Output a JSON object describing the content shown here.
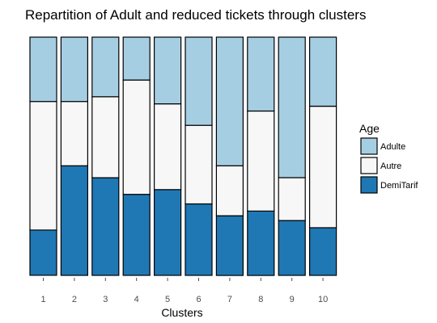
{
  "chart_data": {
    "type": "bar",
    "stacked": true,
    "normalized": true,
    "title": "Repartition of Adult and reduced tickets through clusters",
    "xlabel": "Clusters",
    "ylabel": "",
    "ylim": [
      0,
      1
    ],
    "grid": false,
    "categories": [
      "1",
      "2",
      "3",
      "4",
      "5",
      "6",
      "7",
      "8",
      "9",
      "10"
    ],
    "series": [
      {
        "name": "DemiTarif",
        "color": "#1f78b4",
        "values": [
          0.19,
          0.46,
          0.41,
          0.34,
          0.36,
          0.3,
          0.25,
          0.27,
          0.23,
          0.2
        ]
      },
      {
        "name": "Autre",
        "color": "#f7f7f7",
        "values": [
          0.54,
          0.27,
          0.34,
          0.48,
          0.36,
          0.33,
          0.21,
          0.42,
          0.18,
          0.51
        ]
      },
      {
        "name": "Adulte",
        "color": "#a6cee3",
        "values": [
          0.27,
          0.27,
          0.25,
          0.18,
          0.28,
          0.37,
          0.54,
          0.31,
          0.59,
          0.29
        ]
      }
    ],
    "legend": {
      "title": "Age",
      "position": "right",
      "entries": [
        "Adulte",
        "Autre",
        "DemiTarif"
      ]
    }
  }
}
